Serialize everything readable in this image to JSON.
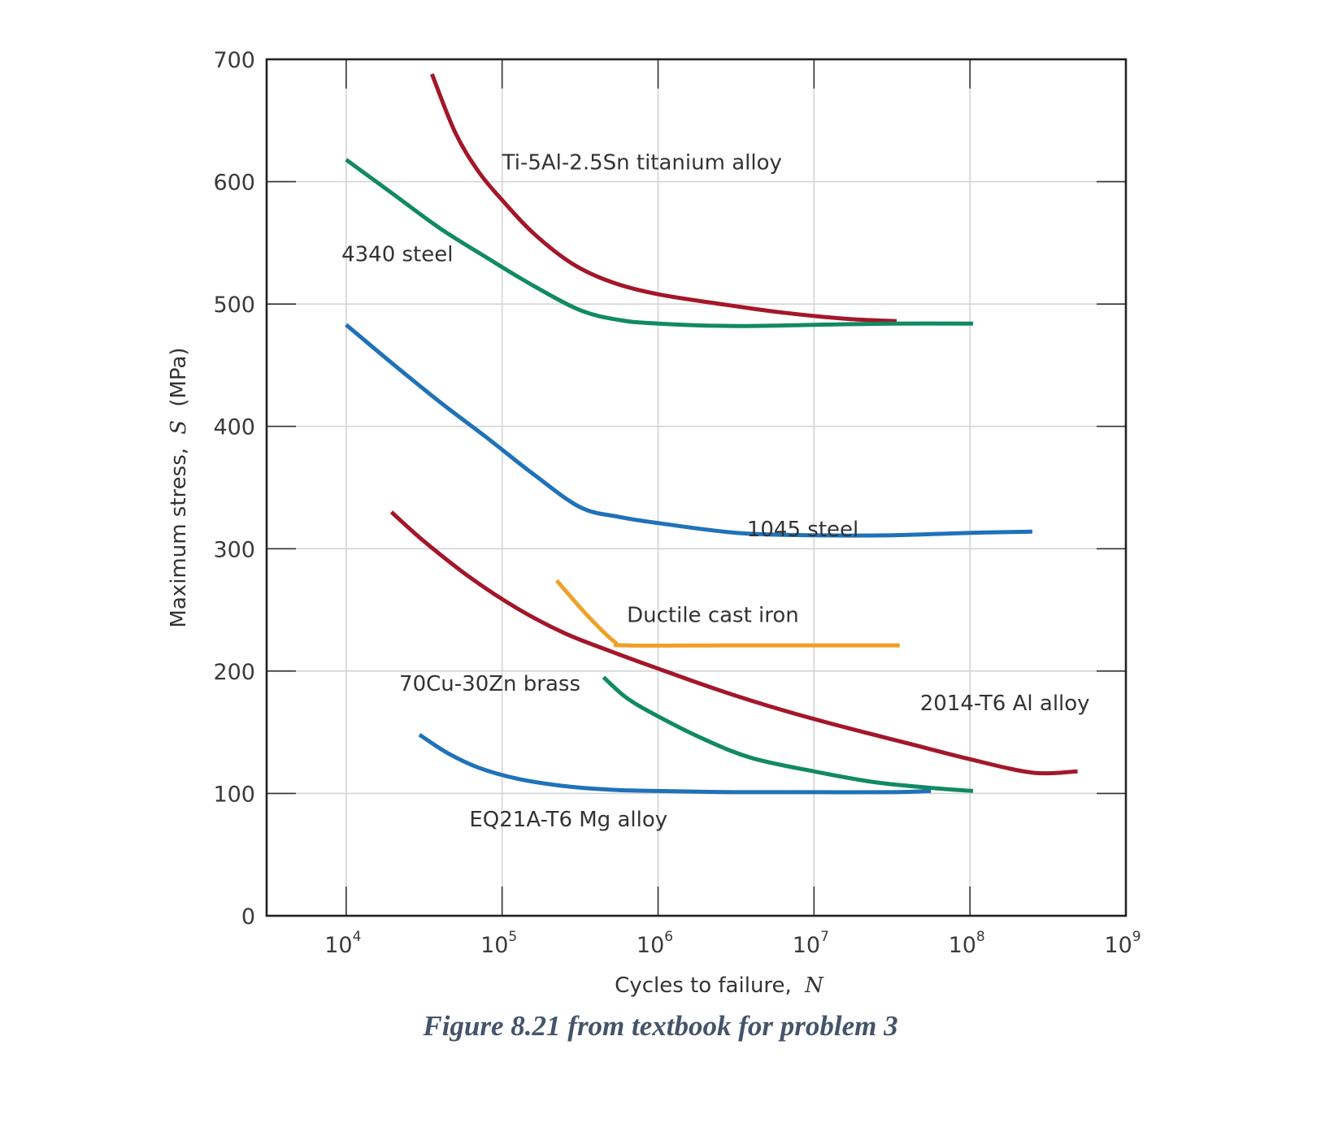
{
  "caption": "Figure 8.21 from textbook for problem 3",
  "chart_data": {
    "type": "line",
    "title": "",
    "xlabel": "Cycles to failure,",
    "xlabel_symbol": "N",
    "ylabel": "Maximum stress,",
    "ylabel_symbol": "S",
    "ylabel_unit": "(MPa)",
    "x_scale": "log10",
    "xlim_log10": [
      3.49,
      9
    ],
    "ylim": [
      0,
      700
    ],
    "grid": true,
    "legend": "none (labels placed beside curves)",
    "y_ticks": [
      0,
      100,
      200,
      300,
      400,
      500,
      600,
      700
    ],
    "y_tick_labels": [
      "0",
      "100",
      "200",
      "300",
      "400",
      "500",
      "600",
      "700"
    ],
    "x_ticks_log10": [
      4,
      5,
      6,
      7,
      8,
      9
    ],
    "x_tick_labels": [
      {
        "base": "10",
        "exp": "4"
      },
      {
        "base": "10",
        "exp": "5"
      },
      {
        "base": "10",
        "exp": "6"
      },
      {
        "base": "10",
        "exp": "7"
      },
      {
        "base": "10",
        "exp": "8"
      },
      {
        "base": "10",
        "exp": "9"
      }
    ],
    "series": [
      {
        "name": "Ti-5Al-2.5Sn titanium alloy",
        "color": "#a3172a",
        "label_log10N": 5.0,
        "label_S": 610,
        "points": [
          [
            4.55,
            688
          ],
          [
            4.7,
            640
          ],
          [
            4.85,
            608
          ],
          [
            5.0,
            585
          ],
          [
            5.2,
            558
          ],
          [
            5.45,
            533
          ],
          [
            5.7,
            518
          ],
          [
            6.0,
            508
          ],
          [
            6.4,
            500
          ],
          [
            6.8,
            493
          ],
          [
            7.2,
            488
          ],
          [
            7.53,
            486
          ]
        ]
      },
      {
        "name": "4340 steel",
        "color": "#118a62",
        "label_log10N": 3.97,
        "label_S": 535,
        "points": [
          [
            4.0,
            618
          ],
          [
            4.3,
            590
          ],
          [
            4.6,
            562
          ],
          [
            4.9,
            538
          ],
          [
            5.2,
            515
          ],
          [
            5.5,
            495
          ],
          [
            5.75,
            487
          ],
          [
            6.0,
            484
          ],
          [
            6.5,
            482
          ],
          [
            7.0,
            483
          ],
          [
            7.5,
            484
          ],
          [
            8.02,
            484
          ]
        ]
      },
      {
        "name": "1045 steel",
        "color": "#1f72b8",
        "label_log10N": 6.57,
        "label_S": 310,
        "points": [
          [
            4.0,
            483
          ],
          [
            4.3,
            451
          ],
          [
            4.6,
            420
          ],
          [
            4.9,
            391
          ],
          [
            5.2,
            361
          ],
          [
            5.5,
            334
          ],
          [
            5.75,
            326
          ],
          [
            6.0,
            321
          ],
          [
            6.5,
            313
          ],
          [
            7.0,
            311
          ],
          [
            7.5,
            311
          ],
          [
            8.0,
            313
          ],
          [
            8.4,
            314
          ]
        ]
      },
      {
        "name": "2014-T6 Al alloy",
        "color": "#a3172a",
        "label_log10N": 7.68,
        "label_S": 168,
        "points": [
          [
            4.29,
            330
          ],
          [
            4.5,
            306
          ],
          [
            4.8,
            276
          ],
          [
            5.1,
            251
          ],
          [
            5.4,
            231
          ],
          [
            5.7,
            216
          ],
          [
            6.0,
            202
          ],
          [
            6.4,
            184
          ],
          [
            6.8,
            168
          ],
          [
            7.2,
            154
          ],
          [
            7.6,
            141
          ],
          [
            8.0,
            128
          ],
          [
            8.4,
            117
          ],
          [
            8.69,
            118
          ]
        ]
      },
      {
        "name": "Ductile cast iron",
        "color": "#f0a02a",
        "label_log10N": 5.8,
        "label_S": 240,
        "points": [
          [
            5.35,
            274
          ],
          [
            5.55,
            245
          ],
          [
            5.72,
            224
          ],
          [
            5.8,
            221
          ],
          [
            6.5,
            221
          ],
          [
            7.55,
            221
          ]
        ]
      },
      {
        "name": "70Cu-30Zn brass",
        "color": "#118a62",
        "label_log10N": 4.34,
        "label_S": 184,
        "points": [
          [
            5.65,
            195
          ],
          [
            5.8,
            178
          ],
          [
            6.0,
            163
          ],
          [
            6.3,
            144
          ],
          [
            6.6,
            129
          ],
          [
            7.0,
            118
          ],
          [
            7.4,
            109
          ],
          [
            7.8,
            104
          ],
          [
            8.02,
            102
          ]
        ]
      },
      {
        "name": "EQ21A-T6 Mg alloy",
        "color": "#1f72b8",
        "label_log10N": 4.79,
        "label_S": 73,
        "points": [
          [
            4.47,
            148
          ],
          [
            4.65,
            133
          ],
          [
            4.85,
            121
          ],
          [
            5.1,
            112
          ],
          [
            5.4,
            106
          ],
          [
            5.7,
            103
          ],
          [
            6.0,
            102
          ],
          [
            6.5,
            101
          ],
          [
            7.0,
            101
          ],
          [
            7.5,
            101
          ],
          [
            7.75,
            102
          ]
        ]
      }
    ]
  }
}
